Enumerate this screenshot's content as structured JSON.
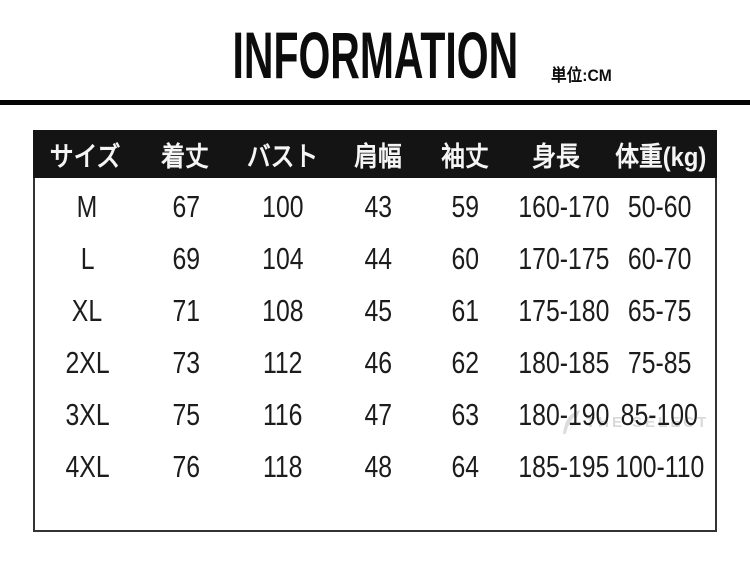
{
  "title": "INFORMATION",
  "unit_label": "単位:CM",
  "watermark": {
    "text": "THE SELECT"
  },
  "colors": {
    "header_bg": "#141414",
    "header_text": "#f5f5f5",
    "body_text": "#1c1c1c",
    "table_border": "#333333",
    "top_rule": "#050505",
    "watermark": "#d9d9d9"
  },
  "table": {
    "headers": [
      "サイズ",
      "着丈",
      "バスト",
      "肩幅",
      "袖丈",
      "身長",
      "体重(kg)"
    ],
    "rows": [
      [
        "M",
        "67",
        "100",
        "43",
        "59",
        "160-170",
        "50-60"
      ],
      [
        "L",
        "69",
        "104",
        "44",
        "60",
        "170-175",
        "60-70"
      ],
      [
        "XL",
        "71",
        "108",
        "45",
        "61",
        "175-180",
        "65-75"
      ],
      [
        "2XL",
        "73",
        "112",
        "46",
        "62",
        "180-185",
        "75-85"
      ],
      [
        "3XL",
        "75",
        "116",
        "47",
        "63",
        "180-190",
        "85-100"
      ],
      [
        "4XL",
        "76",
        "118",
        "48",
        "64",
        "185-195",
        "100-110"
      ]
    ]
  },
  "chart_data": {
    "type": "table",
    "title": "INFORMATION",
    "unit": "CM",
    "columns": [
      "サイズ",
      "着丈",
      "バスト",
      "肩幅",
      "袖丈",
      "身長",
      "体重(kg)"
    ],
    "rows": [
      [
        "M",
        67,
        100,
        43,
        59,
        "160-170",
        "50-60"
      ],
      [
        "L",
        69,
        104,
        44,
        60,
        "170-175",
        "60-70"
      ],
      [
        "XL",
        71,
        108,
        45,
        61,
        "175-180",
        "65-75"
      ],
      [
        "2XL",
        73,
        112,
        46,
        62,
        "180-185",
        "75-85"
      ],
      [
        "3XL",
        75,
        116,
        47,
        63,
        "180-190",
        "85-100"
      ],
      [
        "4XL",
        76,
        118,
        48,
        64,
        "185-195",
        "100-110"
      ]
    ]
  }
}
